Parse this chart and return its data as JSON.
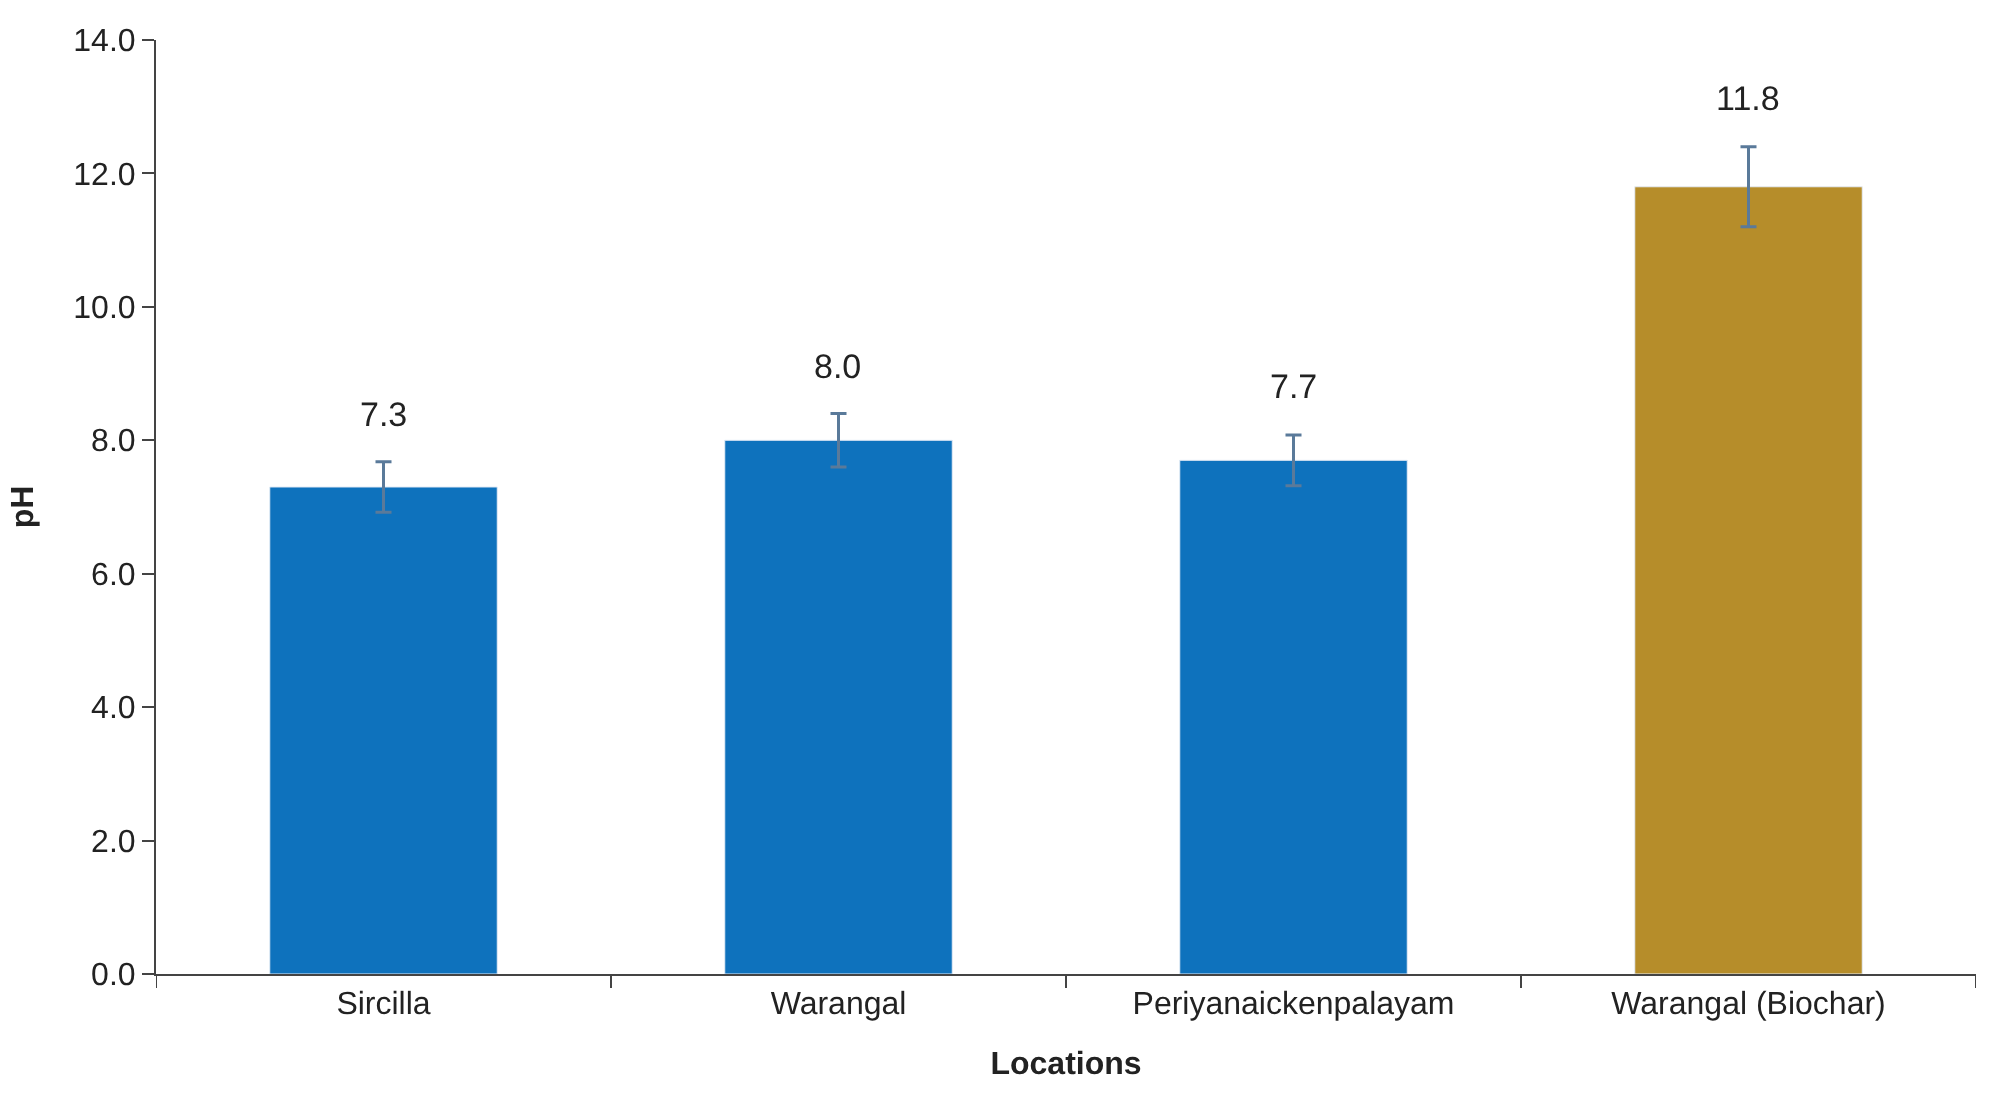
{
  "chart_data": {
    "type": "bar",
    "xlabel": "Locations",
    "ylabel": "pH",
    "categories": [
      "Sircilla",
      "Warangal",
      "Periyanaickenpalayam",
      "Warangal (Biochar)"
    ],
    "values": [
      7.3,
      8.0,
      7.7,
      11.8
    ],
    "colors": [
      "#0e72bd",
      "#0e72bd",
      "#0e72bd",
      "#b68d2a"
    ],
    "errors": [
      0.38,
      0.4,
      0.38,
      0.6
    ],
    "value_labels": [
      "7.3",
      "8.0",
      "7.7",
      "11.8"
    ],
    "ylim": [
      0,
      14
    ],
    "yticks": [
      {
        "value": 0,
        "label": "0.0"
      },
      {
        "value": 2,
        "label": "2.0"
      },
      {
        "value": 4,
        "label": "4.0"
      },
      {
        "value": 6,
        "label": "6.0"
      },
      {
        "value": 8,
        "label": "8.0"
      },
      {
        "value": 10,
        "label": "10.0"
      },
      {
        "value": 12,
        "label": "12.0"
      },
      {
        "value": 14,
        "label": "14.0"
      }
    ]
  }
}
